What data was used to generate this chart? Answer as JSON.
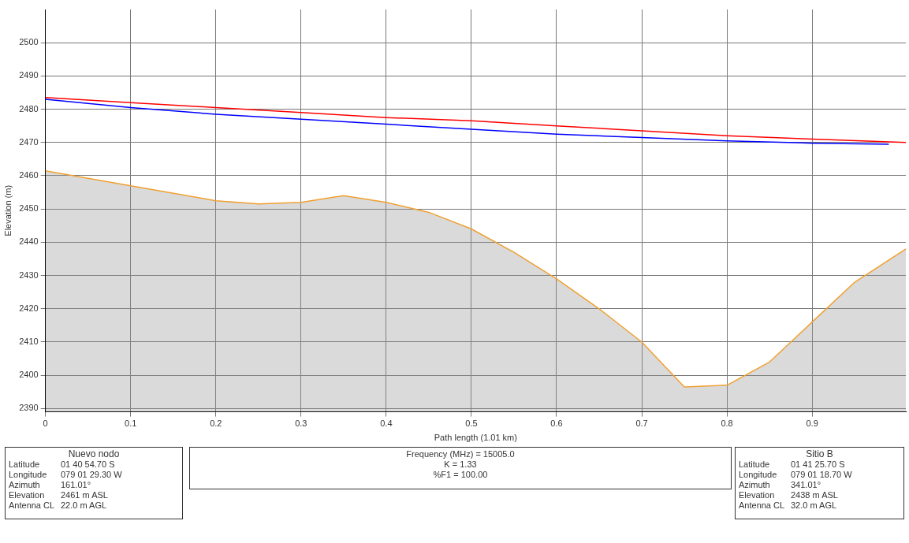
{
  "chart_data": {
    "type": "line",
    "xlabel": "Path length (1.01 km)",
    "ylabel": "Elevation (m)",
    "xlim": [
      0,
      1.01
    ],
    "ylim": [
      2389,
      2510
    ],
    "xticks": [
      0,
      0.1,
      0.2,
      0.3,
      0.4,
      0.5,
      0.6,
      0.7,
      0.8,
      0.9
    ],
    "yticks": [
      2390,
      2400,
      2410,
      2420,
      2430,
      2440,
      2450,
      2460,
      2470,
      2480,
      2490,
      2500
    ],
    "grid": true,
    "legend": false,
    "marker": "none",
    "series": [
      {
        "type": "area",
        "color": "#f0a030",
        "x": [
          0,
          0.1,
          0.2,
          0.25,
          0.3,
          0.35,
          0.4,
          0.45,
          0.5,
          0.55,
          0.6,
          0.65,
          0.7,
          0.75,
          0.8,
          0.85,
          0.9,
          0.95,
          1.01
        ],
        "values": [
          2461.5,
          2457,
          2452.5,
          2451.5,
          2452,
          2454,
          2452,
          2449,
          2444,
          2437,
          2429,
          2420,
          2410,
          2396.5,
          2397,
          2404,
          2416,
          2428,
          2438
        ]
      },
      {
        "type": "line",
        "color": "#ff0000",
        "x": [
          0,
          0.1,
          0.2,
          0.3,
          0.4,
          0.5,
          0.6,
          0.7,
          0.8,
          0.9,
          1.01
        ],
        "values": [
          2483.5,
          2482,
          2480.5,
          2479,
          2477.5,
          2476.5,
          2475,
          2473.5,
          2472,
          2471,
          2470
        ]
      },
      {
        "type": "line",
        "color": "#0000ff",
        "x": [
          0,
          0.1,
          0.2,
          0.3,
          0.4,
          0.5,
          0.6,
          0.7,
          0.8,
          0.9,
          0.99
        ],
        "values": [
          2483,
          2480.5,
          2478.5,
          2477,
          2475.5,
          2474,
          2472.5,
          2471.5,
          2470.5,
          2469.8,
          2469.5
        ]
      }
    ],
    "annotations": [
      "Nuevo nodo\nLatitude\t01 40 54.70 S\nLongitude\t079 01 29.30 W\nAzimuth\t161.01°\nElevation\t2461 m ASL\nAntenna CL\t22.0 m AGL",
      "Frequency (MHz) = 15005.0\nK = 1.33\n%F1 = 100.00",
      "Sitio B\nLatitude\t01 41 25.70 S\nLongitude\t079 01 18.70 W\nAzimuth\t341.01°\nElevation\t2438 m ASL\nAntenna CL\t32.0 m AGL"
    ]
  }
}
